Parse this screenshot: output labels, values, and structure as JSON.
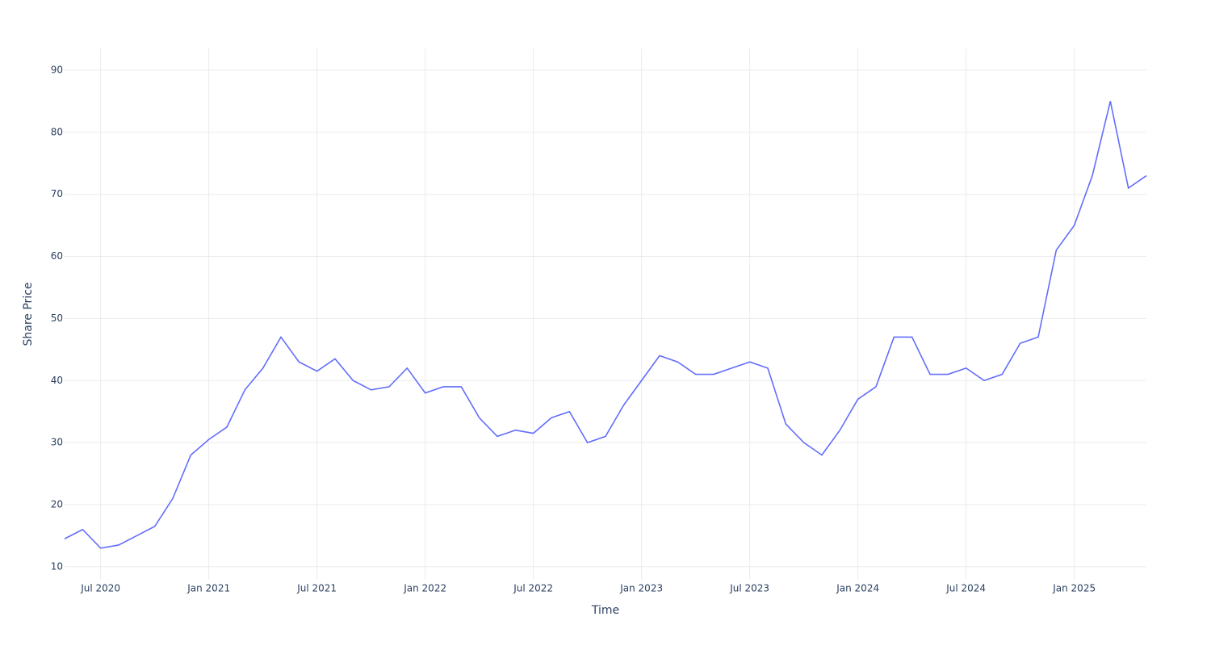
{
  "chart_data": {
    "type": "line",
    "x_label": "Time",
    "y_label": "Share Price",
    "x": [
      "2020-05",
      "2020-06",
      "2020-07",
      "2020-08",
      "2020-09",
      "2020-10",
      "2020-11",
      "2020-12",
      "2021-01",
      "2021-02",
      "2021-03",
      "2021-04",
      "2021-05",
      "2021-06",
      "2021-07",
      "2021-08",
      "2021-09",
      "2021-10",
      "2021-11",
      "2021-12",
      "2022-01",
      "2022-02",
      "2022-03",
      "2022-04",
      "2022-05",
      "2022-06",
      "2022-07",
      "2022-08",
      "2022-09",
      "2022-10",
      "2022-11",
      "2022-12",
      "2023-01",
      "2023-02",
      "2023-03",
      "2023-04",
      "2023-05",
      "2023-06",
      "2023-07",
      "2023-08",
      "2023-09",
      "2023-10",
      "2023-11",
      "2023-12",
      "2024-01",
      "2024-02",
      "2024-03",
      "2024-04",
      "2024-05",
      "2024-06",
      "2024-07",
      "2024-08",
      "2024-09",
      "2024-10",
      "2024-11",
      "2024-12",
      "2025-01",
      "2025-02",
      "2025-03",
      "2025-04",
      "2025-05"
    ],
    "series": [
      {
        "name": "Share Price",
        "color": "#636efa",
        "values": [
          14.5,
          16,
          13,
          13.5,
          15,
          16.5,
          21,
          28,
          30.5,
          32.5,
          38.5,
          42,
          47,
          43,
          41.5,
          43.5,
          40,
          38.5,
          39,
          42,
          38,
          39,
          39,
          34,
          31,
          32,
          31.5,
          34,
          35,
          30,
          31,
          36,
          40,
          44,
          43,
          41,
          41,
          42,
          43,
          42,
          33,
          30,
          28,
          32,
          37,
          39,
          47,
          47,
          41,
          41,
          42,
          40,
          41,
          46,
          47,
          61,
          65,
          73,
          85,
          71,
          73
        ]
      }
    ],
    "xlim": [
      "2020-05",
      "2025-05"
    ],
    "xticks": [
      {
        "value": "2020-07",
        "label": "Jul 2020"
      },
      {
        "value": "2021-01",
        "label": "Jan 2021"
      },
      {
        "value": "2021-07",
        "label": "Jul 2021"
      },
      {
        "value": "2022-01",
        "label": "Jan 2022"
      },
      {
        "value": "2022-07",
        "label": "Jul 2022"
      },
      {
        "value": "2023-01",
        "label": "Jan 2023"
      },
      {
        "value": "2023-07",
        "label": "Jul 2023"
      },
      {
        "value": "2024-01",
        "label": "Jan 2024"
      },
      {
        "value": "2024-07",
        "label": "Jul 2024"
      },
      {
        "value": "2025-01",
        "label": "Jan 2025"
      }
    ],
    "ylim": [
      7.9,
      93.5
    ],
    "yticks": [
      10,
      20,
      30,
      40,
      50,
      60,
      70,
      80,
      90
    ],
    "grid": true
  }
}
